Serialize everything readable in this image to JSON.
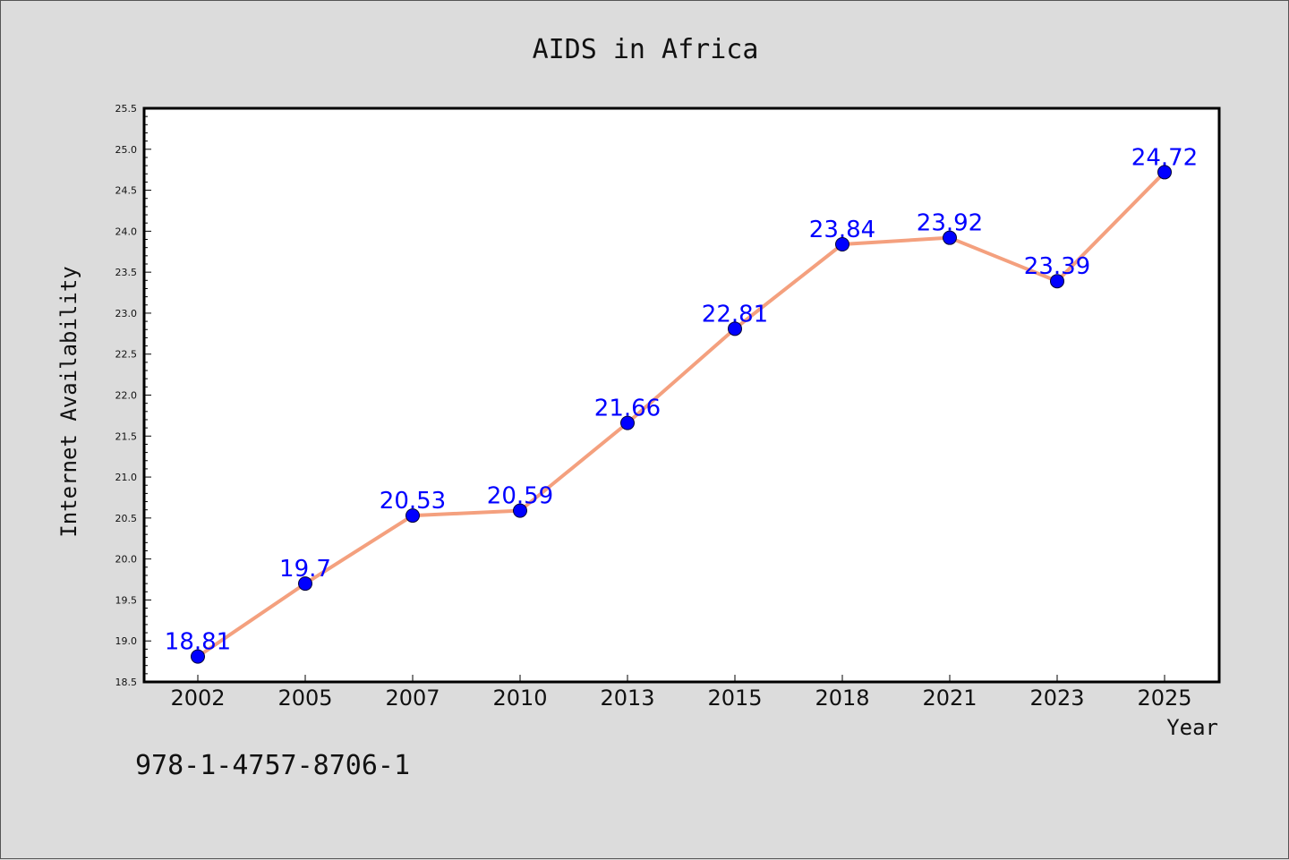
{
  "chart_data": {
    "type": "line",
    "title": "AIDS in Africa",
    "xlabel": "Year",
    "ylabel": "Internet Availability",
    "categories": [
      "2002",
      "2005",
      "2007",
      "2010",
      "2013",
      "2015",
      "2018",
      "2021",
      "2023",
      "2025"
    ],
    "values": [
      18.81,
      19.7,
      20.53,
      20.59,
      21.66,
      22.81,
      23.84,
      23.92,
      23.39,
      24.72
    ],
    "data_labels": [
      "18.81",
      "19.7",
      "20.53",
      "20.59",
      "21.66",
      "22.81",
      "23.84",
      "23.92",
      "23.39",
      "24.72"
    ],
    "ylim": [
      18.5,
      25.5
    ],
    "yticks": [
      "18.5",
      "19.0",
      "19.5",
      "20.0",
      "20.5",
      "21.0",
      "21.5",
      "22.0",
      "22.5",
      "23.0",
      "23.5",
      "24.0",
      "24.5",
      "25.0",
      "25.5"
    ],
    "grid": false,
    "line_color": "#f4a07e",
    "marker_color": "#0000ff",
    "label_color": "#0000ff"
  },
  "footer": {
    "isbn": "978-1-4757-8706-1"
  }
}
